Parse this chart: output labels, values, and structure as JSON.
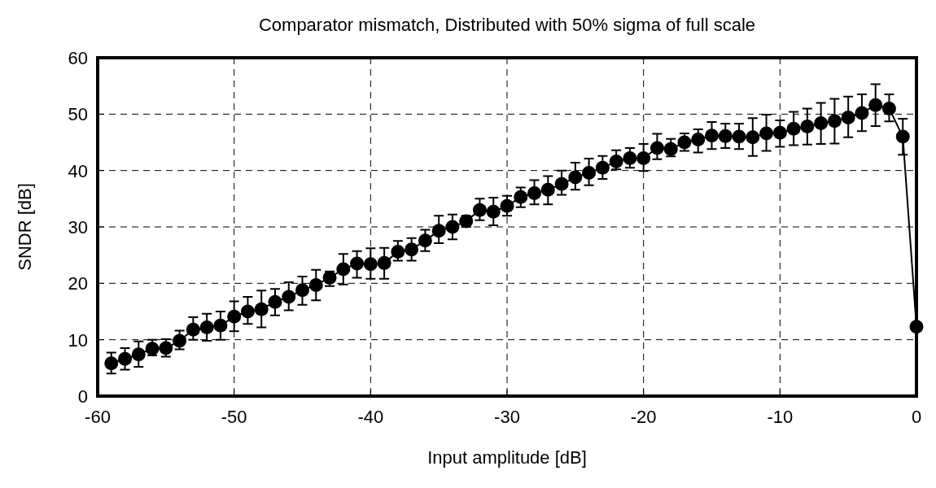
{
  "chart_data": {
    "type": "line",
    "title": "Comparator mismatch, Distributed with 50% sigma of full scale",
    "xlabel": "Input amplitude [dB]",
    "ylabel": "SNDR [dB]",
    "x": [
      -59,
      -58,
      -57,
      -56,
      -55,
      -54,
      -53,
      -52,
      -51,
      -50,
      -49,
      -48,
      -47,
      -46,
      -45,
      -44,
      -43,
      -42,
      -41,
      -40,
      -39,
      -38,
      -37,
      -36,
      -35,
      -34,
      -33,
      -32,
      -31,
      -30,
      -29,
      -28,
      -27,
      -26,
      -25,
      -24,
      -23,
      -22,
      -21,
      -20,
      -19,
      -18,
      -17,
      -16,
      -15,
      -14,
      -13,
      -12,
      -11,
      -10,
      -9,
      -8,
      -7,
      -6,
      -5,
      -4,
      -3,
      -2,
      -1,
      0
    ],
    "series": [
      {
        "color": "#000000",
        "values": [
          5.8,
          6.6,
          7.4,
          8.4,
          8.5,
          9.8,
          11.8,
          12.2,
          12.5,
          14.1,
          15,
          15.4,
          16.7,
          17.6,
          18.8,
          19.7,
          21,
          22.5,
          23.5,
          23.4,
          23.6,
          25.6,
          26,
          27.6,
          29.3,
          30,
          31,
          33,
          32.7,
          33.7,
          35.3,
          36,
          36.6,
          37.6,
          38.8,
          39.6,
          40.5,
          41.6,
          42.2,
          42.2,
          44,
          43.8,
          45,
          45.5,
          46.2,
          46.1,
          46,
          45.9,
          46.6,
          46.7,
          47.4,
          47.8,
          48.4,
          48.8,
          49.4,
          50.2,
          51.6,
          51,
          46,
          12.3
        ],
        "errors": [
          [
            4,
            7.7
          ],
          [
            4.7,
            8.5
          ],
          [
            5.2,
            9.7
          ],
          [
            7.2,
            10
          ],
          [
            7,
            10.1
          ],
          [
            8.3,
            11.6
          ],
          [
            10,
            14
          ],
          [
            9.8,
            14.6
          ],
          [
            10,
            15
          ],
          [
            11.5,
            16.8
          ],
          [
            12.8,
            17.6
          ],
          [
            12.2,
            18.7
          ],
          [
            14.3,
            19
          ],
          [
            15.2,
            20.2
          ],
          [
            16.2,
            21.2
          ],
          [
            17,
            22.4
          ],
          [
            19.5,
            22.1
          ],
          [
            19.8,
            25.2
          ],
          [
            21,
            25.7
          ],
          [
            20.8,
            26.2
          ],
          [
            20.8,
            26.3
          ],
          [
            24,
            27.5
          ],
          [
            24,
            28
          ],
          [
            25.7,
            29.5
          ],
          [
            27.1,
            32
          ],
          [
            27.8,
            32.2
          ],
          [
            30,
            32
          ],
          [
            31.2,
            35
          ],
          [
            30.3,
            35.2
          ],
          [
            32,
            35.5
          ],
          [
            33.5,
            37
          ],
          [
            34,
            38.3
          ],
          [
            34,
            39
          ],
          [
            35.7,
            40
          ],
          [
            36.6,
            41.4
          ],
          [
            37.4,
            42.1
          ],
          [
            38.5,
            42.6
          ],
          [
            40.2,
            43.6
          ],
          [
            40.5,
            44
          ],
          [
            39.9,
            44.7
          ],
          [
            42,
            46.5
          ],
          [
            42.5,
            45.6
          ],
          [
            43.5,
            46.6
          ],
          [
            43.2,
            47.3
          ],
          [
            43.8,
            48.6
          ],
          [
            44,
            48.3
          ],
          [
            43.8,
            48.3
          ],
          [
            42.6,
            49.3
          ],
          [
            43.5,
            49.9
          ],
          [
            44.2,
            48.9
          ],
          [
            44.5,
            50.4
          ],
          [
            44.6,
            51
          ],
          [
            44.7,
            52
          ],
          [
            44.8,
            52.7
          ],
          [
            45.9,
            53.1
          ],
          [
            47,
            53.5
          ],
          [
            47.9,
            55.3
          ],
          [
            48.7,
            53.5
          ],
          [
            42.8,
            49.2
          ],
          null
        ]
      }
    ],
    "xlim": [
      -60,
      0
    ],
    "xticks": [
      -60,
      -50,
      -40,
      -30,
      -20,
      -10,
      0
    ],
    "ylim": [
      0,
      60
    ],
    "yticks": [
      0,
      10,
      20,
      30,
      40,
      50,
      60
    ],
    "grid": true,
    "marker": "circle",
    "line_style": "solid"
  }
}
